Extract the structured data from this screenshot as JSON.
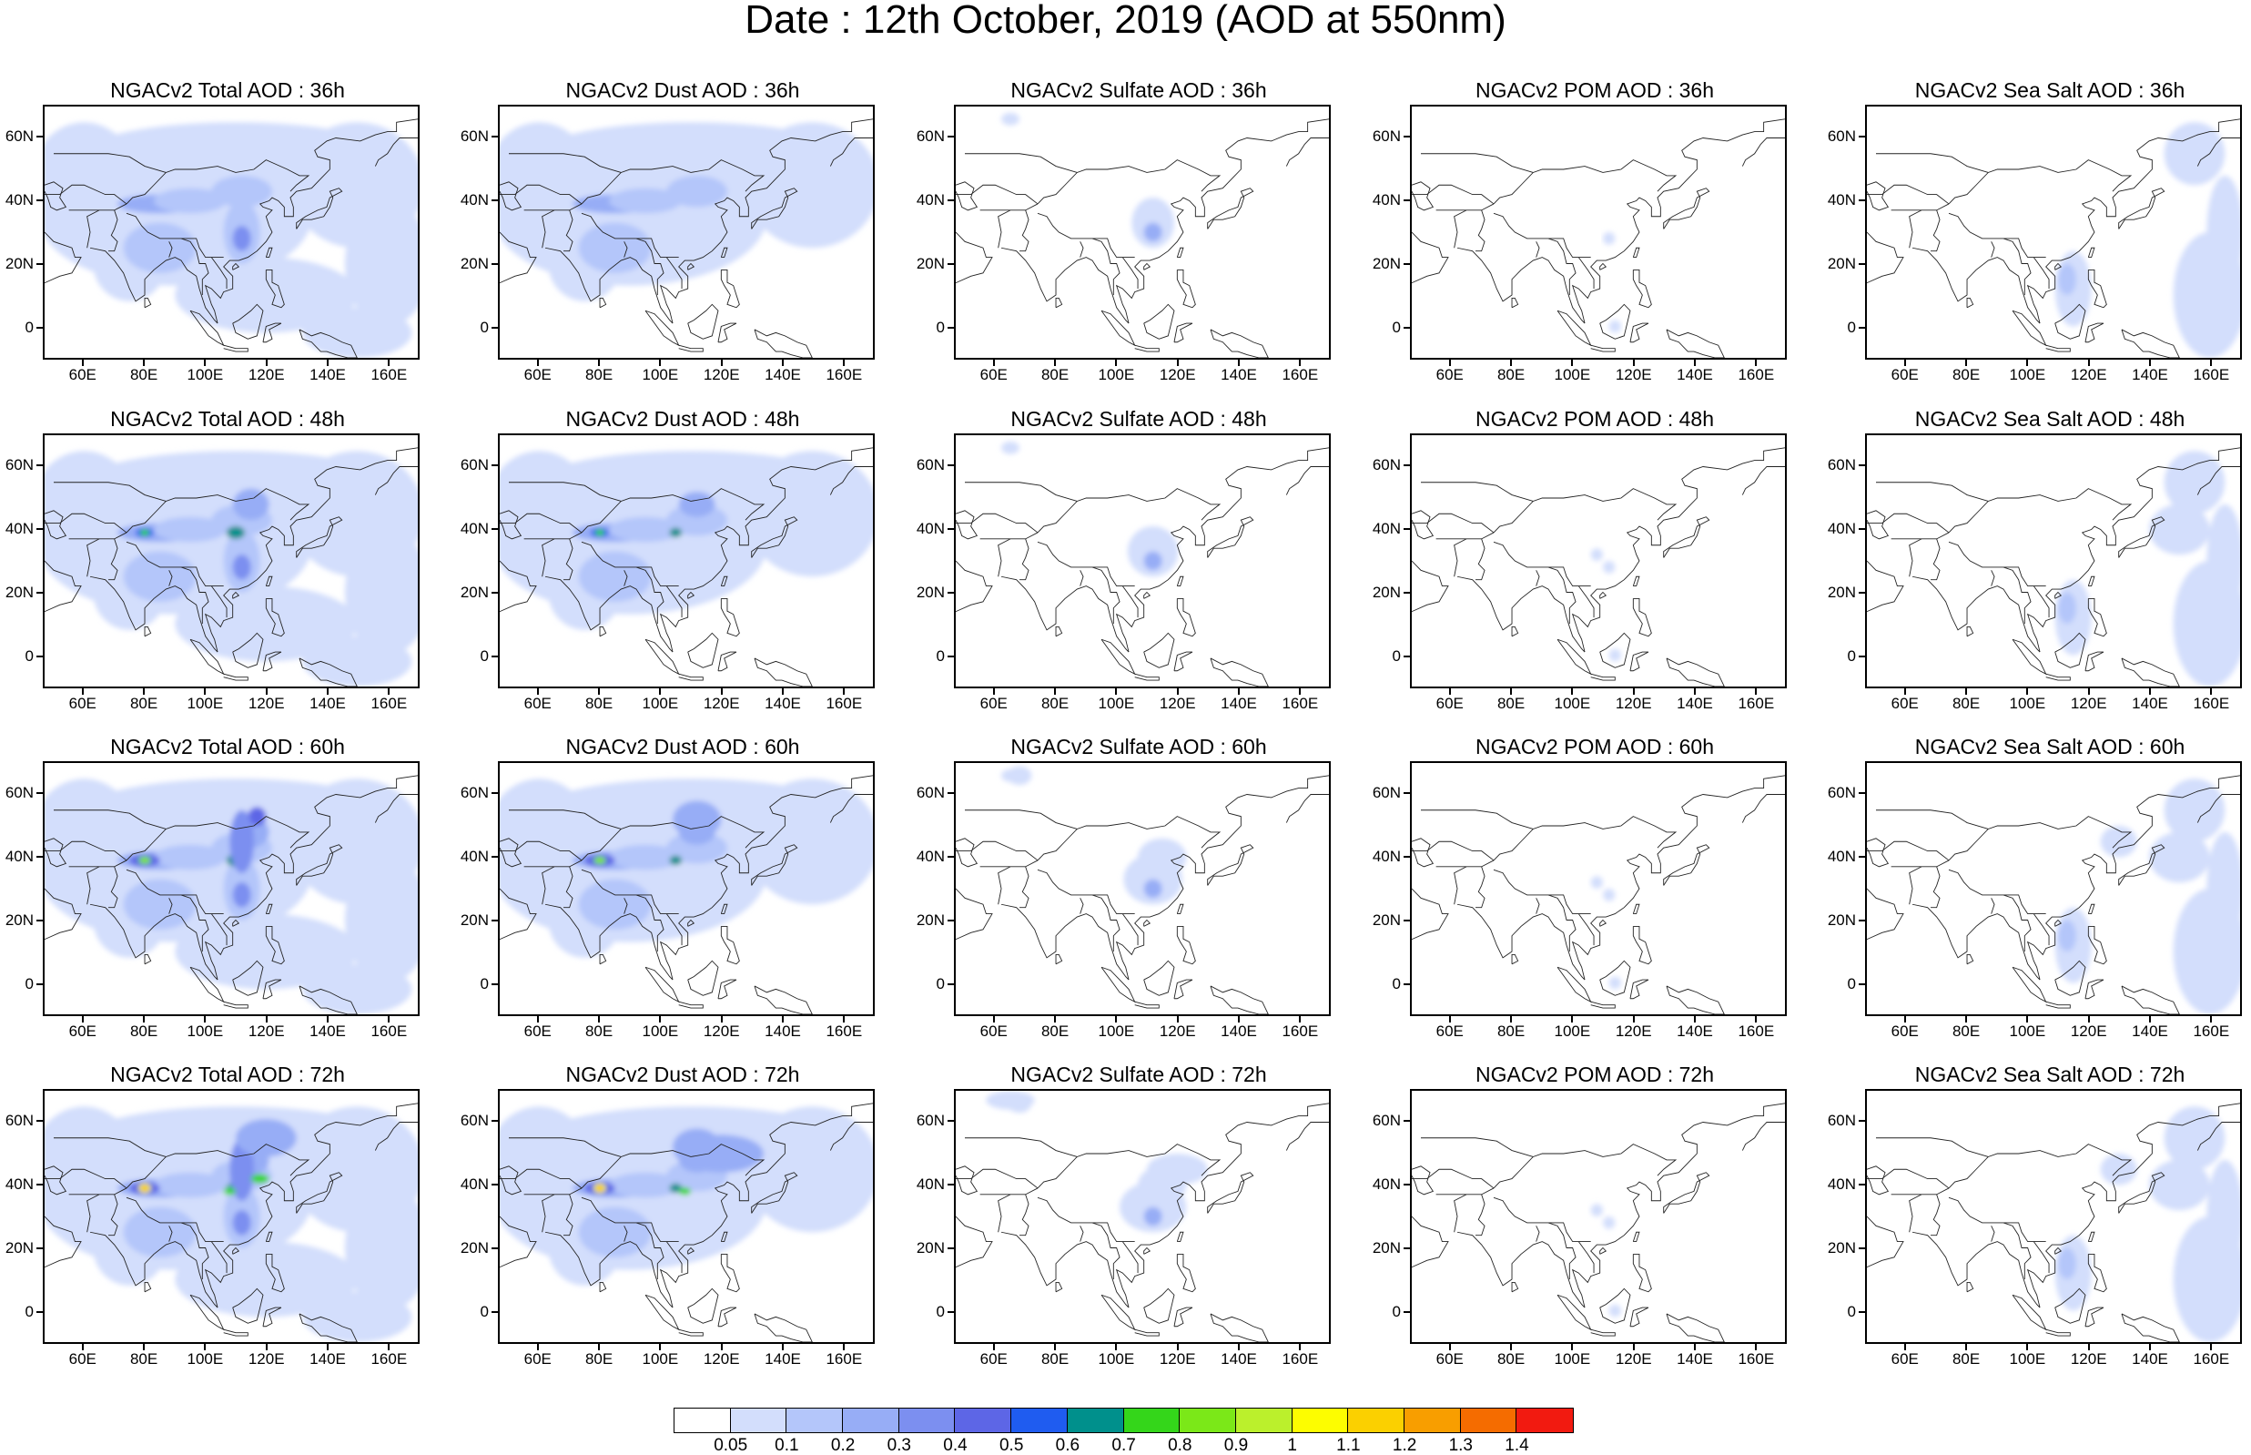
{
  "title": "Date : 12th October, 2019 (AOD at 550nm)",
  "lat_ticks": [
    "60N",
    "40N",
    "20N",
    "0"
  ],
  "lon_ticks": [
    "60E",
    "80E",
    "100E",
    "120E",
    "140E",
    "160E"
  ],
  "panels": [
    [
      {
        "title": "NGACv2 Total AOD : 36h",
        "variable": "total",
        "hour": 36
      },
      {
        "title": "NGACv2 Dust AOD : 36h",
        "variable": "dust",
        "hour": 36
      },
      {
        "title": "NGACv2 Sulfate AOD : 36h",
        "variable": "sulfate",
        "hour": 36
      },
      {
        "title": "NGACv2 POM AOD : 36h",
        "variable": "pom",
        "hour": 36
      },
      {
        "title": "NGACv2 Sea Salt AOD : 36h",
        "variable": "seasalt",
        "hour": 36
      }
    ],
    [
      {
        "title": "NGACv2 Total AOD : 48h",
        "variable": "total",
        "hour": 48
      },
      {
        "title": "NGACv2 Dust AOD : 48h",
        "variable": "dust",
        "hour": 48
      },
      {
        "title": "NGACv2 Sulfate AOD : 48h",
        "variable": "sulfate",
        "hour": 48
      },
      {
        "title": "NGACv2 POM AOD : 48h",
        "variable": "pom",
        "hour": 48
      },
      {
        "title": "NGACv2 Sea Salt AOD : 48h",
        "variable": "seasalt",
        "hour": 48
      }
    ],
    [
      {
        "title": "NGACv2 Total AOD : 60h",
        "variable": "total",
        "hour": 60
      },
      {
        "title": "NGACv2 Dust AOD : 60h",
        "variable": "dust",
        "hour": 60
      },
      {
        "title": "NGACv2 Sulfate AOD : 60h",
        "variable": "sulfate",
        "hour": 60
      },
      {
        "title": "NGACv2 POM AOD : 60h",
        "variable": "pom",
        "hour": 60
      },
      {
        "title": "NGACv2 Sea Salt AOD : 60h",
        "variable": "seasalt",
        "hour": 60
      }
    ],
    [
      {
        "title": "NGACv2 Total AOD : 72h",
        "variable": "total",
        "hour": 72
      },
      {
        "title": "NGACv2 Dust AOD : 72h",
        "variable": "dust",
        "hour": 72
      },
      {
        "title": "NGACv2 Sulfate AOD : 72h",
        "variable": "sulfate",
        "hour": 72
      },
      {
        "title": "NGACv2 POM AOD : 72h",
        "variable": "pom",
        "hour": 72
      },
      {
        "title": "NGACv2 Sea Salt  AOD : 72h",
        "variable": "seasalt",
        "hour": 72
      }
    ]
  ],
  "colorbar": {
    "labels": [
      "0.05",
      "0.1",
      "0.2",
      "0.3",
      "0.4",
      "0.5",
      "0.6",
      "0.7",
      "0.8",
      "0.9",
      "1",
      "1.1",
      "1.2",
      "1.3",
      "1.4"
    ],
    "colors": [
      "#ffffff",
      "#d3defc",
      "#b4c6fa",
      "#97adf6",
      "#7c8ff0",
      "#5d66e6",
      "#1f5cf0",
      "#00908c",
      "#34d61a",
      "#7be818",
      "#bbf02c",
      "#fdfd00",
      "#fbd000",
      "#f89e00",
      "#f56c00",
      "#f21a10"
    ]
  }
}
